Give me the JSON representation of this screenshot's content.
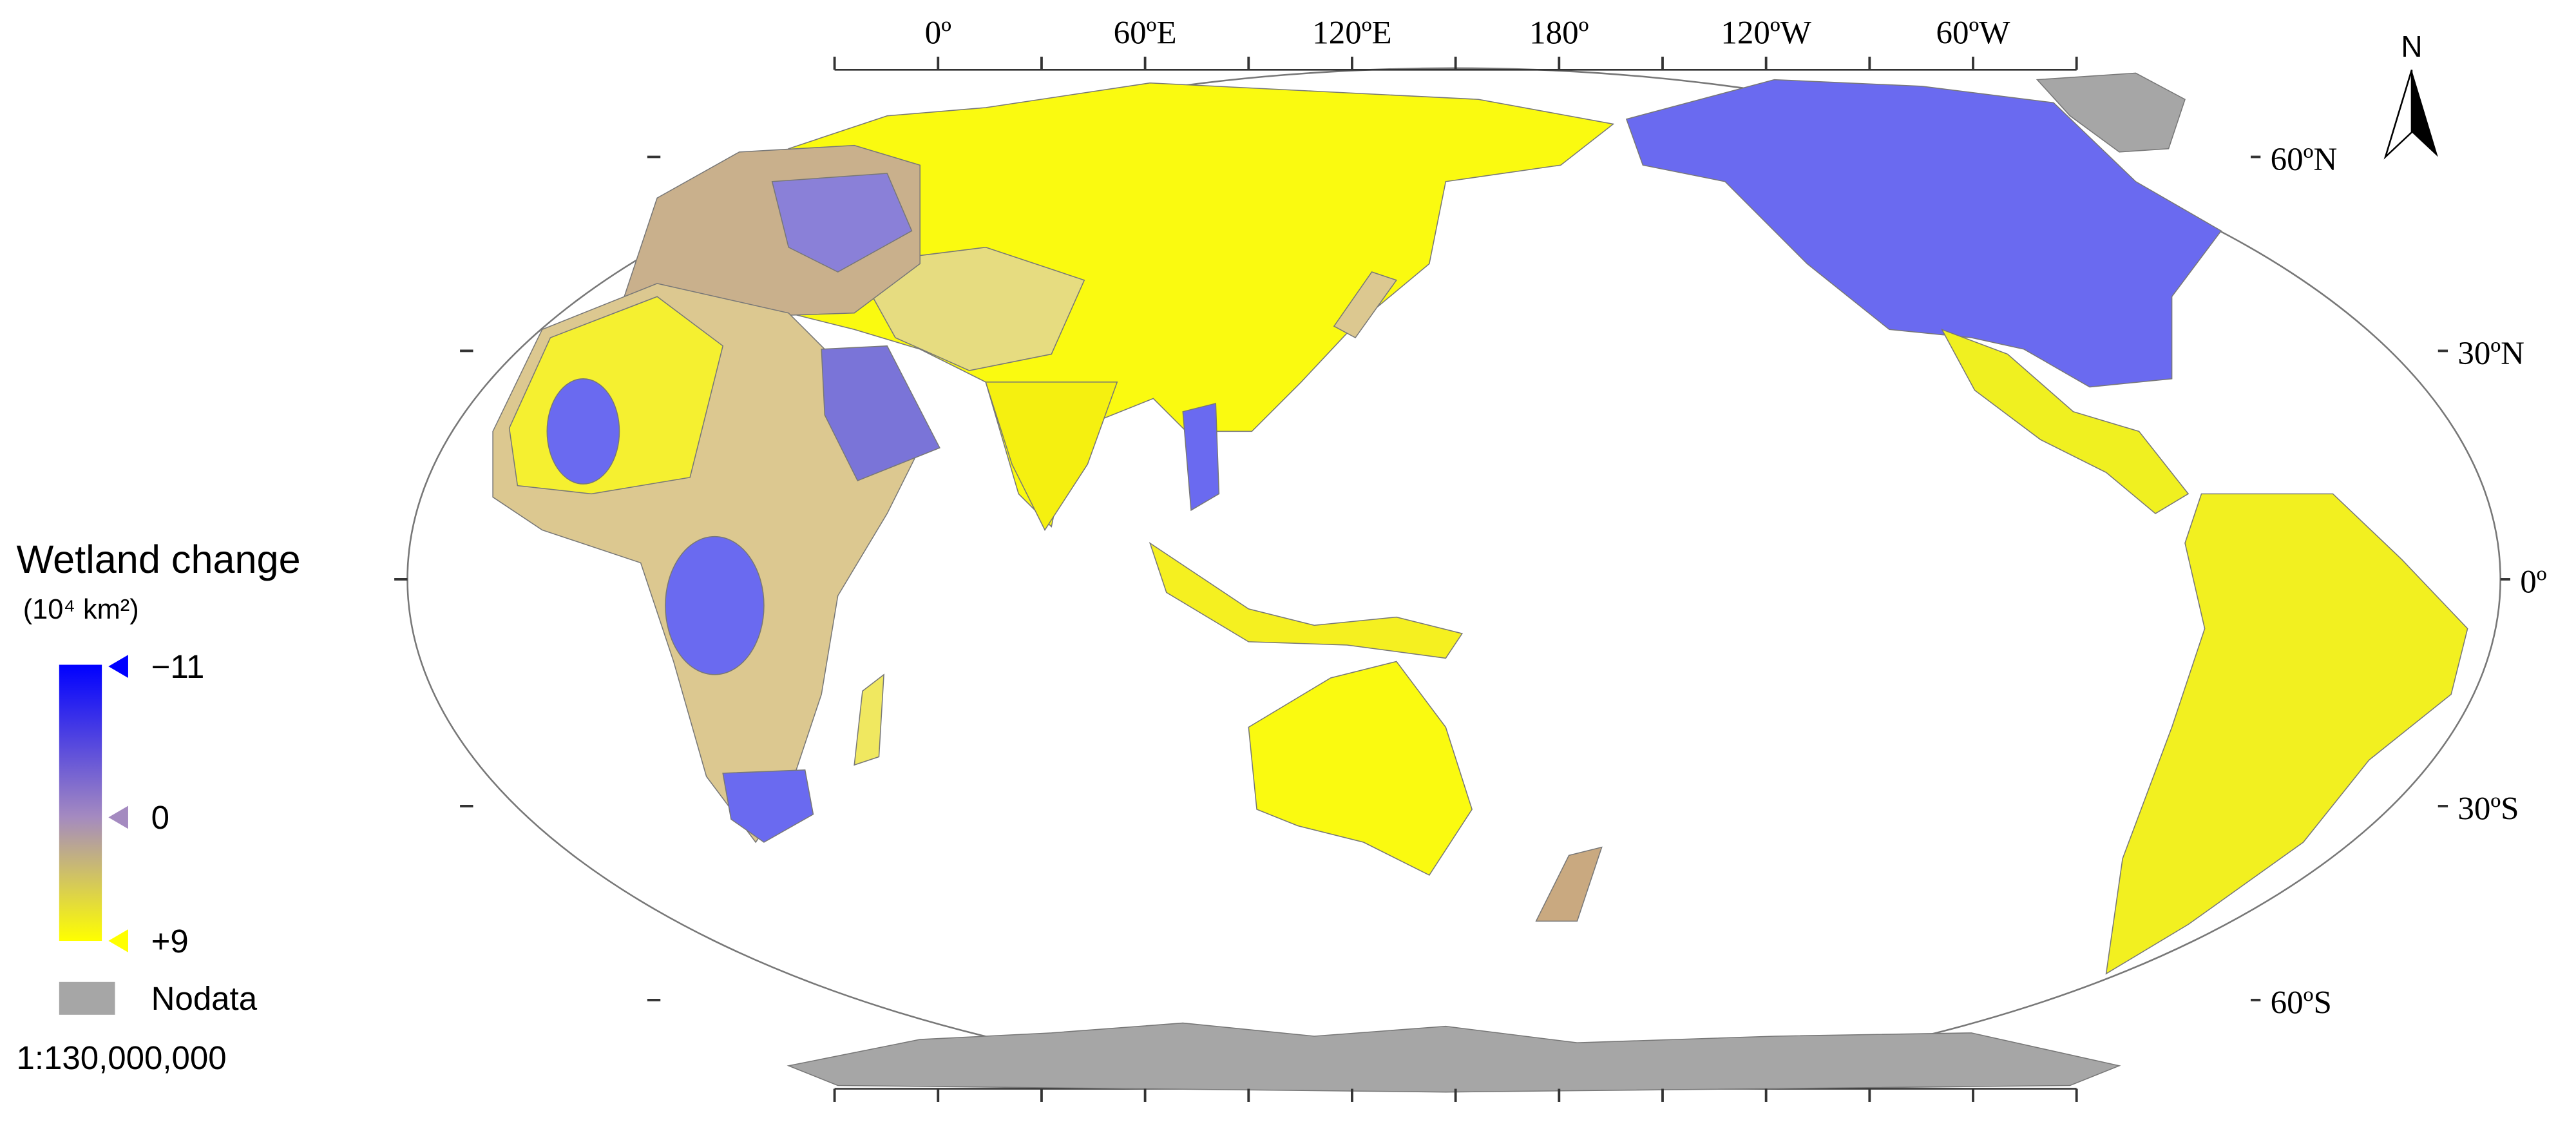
{
  "map": {
    "lon_labels": [
      "0º",
      "60ºE",
      "120ºE",
      "180º",
      "120ºW",
      "60ºW"
    ],
    "lat_labels": [
      "60ºN",
      "30ºN",
      "0º",
      "30ºS",
      "60ºS"
    ],
    "north": "N"
  },
  "legend": {
    "title": "Wetland change",
    "unit": "(10⁴ km²)",
    "ticks": [
      {
        "value": -11,
        "label": "−11"
      },
      0,
      {
        "value": 9,
        "label": "+9"
      }
    ],
    "colors": [
      "#0000ff",
      "#a48ac0",
      "#ffff00"
    ],
    "nodata": "Nodata",
    "nodata_color": "#a6a6a6",
    "scale": "1:130,000,000"
  }
}
